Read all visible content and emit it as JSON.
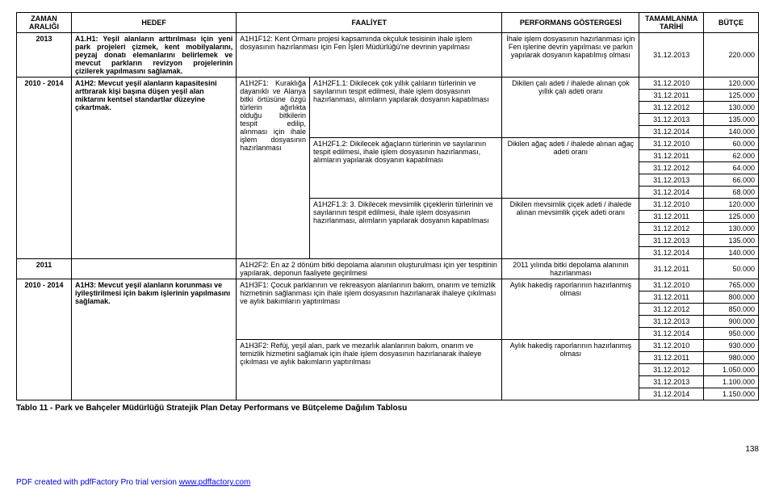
{
  "headers": {
    "zaman": "ZAMAN ARALIĞI",
    "hedef": "HEDEF",
    "faaliyet": "FAALİYET",
    "perf": "PERFORMANS GÖSTERGESİ",
    "tarih": "TAMAMLANMA TARİHİ",
    "butce": "BÜTÇE"
  },
  "r1": {
    "zaman": "2013",
    "hedef": "A1.H1: Yeşil alanların arttırılması için yeni park projeleri çizmek, kent mobilyalarını, peyzaj donatı elemanlarını belirlemek ve mevcut parkların revizyon projelerinin çizilerek yapılmasını sağlamak.",
    "faaliyet": "A1H1F12: Kent Ormanı projesi kapsamında okçuluk tesisinin ihale işlem dosyasının hazırlanması için Fen İşleri Müdürlüğü'ne devrinin yapılması",
    "perf": "İhale işlem dosyasının hazırlanması için Fen işlerine devrin yapılması ve parkın yapılarak dosyanın kapatılmış olması",
    "tarih": "31.12.2013",
    "butce": "220.000"
  },
  "r2": {
    "zaman": "2010 - 2014",
    "hedef": "A1H2: Mevcut yeşil alanların kapasitesini arttırarak kişi başına düşen yeşil alan miktarını kentsel standartlar düzeyine çıkartmak.",
    "faaliyetA": "A1H2F1: Kuraklığa dayanıklı ve Alanya bitki örtüsüne özgü türlerin ağırlıkta olduğu bitkilerin tespit edilip, alınması için ihale işlem dosyasının hazırlanması",
    "f11": "A1H2F1.1: Dikilecek çok yıllık çalıların türlerinin ve sayılarının tespit edilmesi, ihale işlem dosyasının hazırlanması, alımların yapılarak dosyanın kapatılması",
    "perf11": "Dikilen çalı adeti / ihalede alınan çok yıllık çalı adeti oranı",
    "dates11": [
      "31.12.2010",
      "31.12.2011",
      "31.12.2012",
      "31.12.2013",
      "31.12.2014"
    ],
    "butce11": [
      "120.000",
      "125.000",
      "130.000",
      "135.000",
      "140.000"
    ],
    "f12": "A1H2F1.2: Dikilecek ağaçların türlerinin ve sayılarının tespit edilmesi, ihale işlem dosyasının hazırlanması, alımların yapılarak dosyanın kapatılması",
    "perf12": "Dikilen ağaç adeti / ihalede alınan ağaç adeti oranı",
    "dates12": [
      "31.12.2010",
      "31.12.2011",
      "31.12.2012",
      "31.12.2013",
      "31.12.2014"
    ],
    "butce12": [
      "60.000",
      "62.000",
      "64.000",
      "66.000",
      "68.000"
    ],
    "f13": "A1H2F1.3: 3. Dikilecek mevsimlik çiçeklerin türlerinin ve sayılarının tespit edilmesi, ihale işlem dosyasının hazırlanması, alımların yapılarak dosyanın kapatılması",
    "perf13": "Dikilen mevsimlik çiçek adeti / ihalede alınan mevsimlik çiçek adeti oranı",
    "dates13": [
      "31.12.2010",
      "31.12.2011",
      "31.12.2012",
      "31.12.2013",
      "31.12.2014"
    ],
    "butce13": [
      "120.000",
      "125.000",
      "130.000",
      "135.000",
      "140.000"
    ]
  },
  "r3": {
    "zaman": "2011",
    "faaliyet": "A1H2F2: En az 2 dönüm bitki depolama alanının oluşturulması için yer tespitinin yapılarak, deponun faaliyete geçirilmesi",
    "perf": "2011 yılında bitki depolama alanının hazırlanması",
    "tarih": "31.12.2011",
    "butce": "50.000"
  },
  "r4": {
    "zaman": "2010 - 2014",
    "hedef": "A1H3: Mevcut yeşil alanların korunması ve iyileştirilmesi için bakım işlerinin yapılmasını sağlamak.",
    "f1": "A1H3F1: Çocuk parklarının ve rekreasyon alanlarının bakım, onarım ve temizlik hizmetinin sağlanması için ihale işlem dosyasının hazırlanarak ihaleye çıkılması ve aylık bakımların yaptırılması",
    "perf1": "Aylık hakediş raporlarının hazırlanmış olması",
    "dates1": [
      "31.12.2010",
      "31.12.2011",
      "31.12.2012",
      "31.12.2013",
      "31.12.2014"
    ],
    "butce1": [
      "765.000",
      "800.000",
      "850.000",
      "900.000",
      "950.000"
    ],
    "f2": "A1H3F2: Refüj, yeşil alan, park ve mezarlık alanlarının bakım, onarım ve temizlik hizmetini sağlamak için ihale işlem dosyasının hazırlanarak ihaleye çıkılması ve aylık bakımların yaptırılması",
    "perf2": "Aylık hakediş raporlarının hazırlanmış olması",
    "dates2": [
      "31.12.2010",
      "31.12.2011",
      "31.12.2012",
      "31.12.2013",
      "31.12.2014"
    ],
    "butce2": [
      "930.000",
      "980.000",
      "1.050.000",
      "1.100.000",
      "1.150.000"
    ]
  },
  "caption": "Tablo 11 - Park ve Bahçeler Müdürlüğü Stratejik Plan Detay Performans ve Bütçeleme Dağılım Tablosu",
  "pagenum": "138",
  "footer_prefix": "PDF created with pdfFactory Pro trial version ",
  "footer_link": "www.pdffactory.com"
}
